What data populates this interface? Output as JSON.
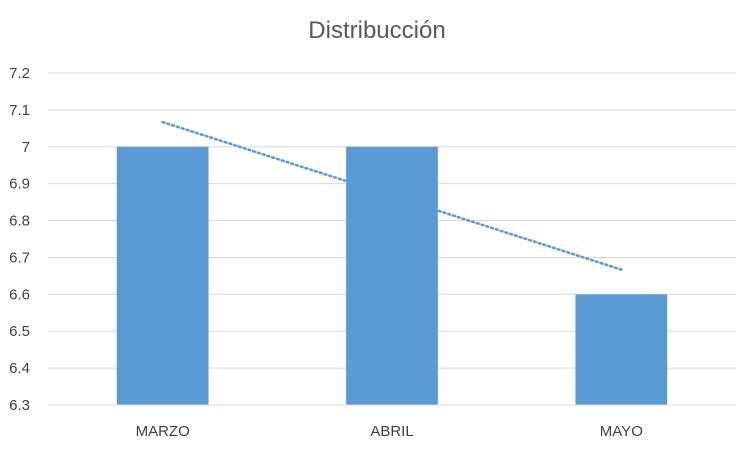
{
  "chart_data": {
    "type": "bar",
    "title": "Distribucción",
    "categories": [
      "MARZO",
      "ABRIL",
      "MAYO"
    ],
    "values": [
      7,
      7,
      6.6
    ],
    "ylim": [
      6.3,
      7.2
    ],
    "yticks": [
      "6.3",
      "6.4",
      "6.5",
      "6.6",
      "6.7",
      "6.8",
      "6.9",
      "7",
      "7.1",
      "7.2"
    ],
    "trendline": {
      "type": "linear",
      "style": "dotted",
      "start": 7.067,
      "end": 6.667
    },
    "xlabel": "",
    "ylabel": "",
    "grid": true,
    "legend": "none",
    "colors": {
      "bar": "#5b9bd5",
      "trendline": "#5b9bd5",
      "grid": "#d9d9d9",
      "text": "#404040"
    }
  }
}
